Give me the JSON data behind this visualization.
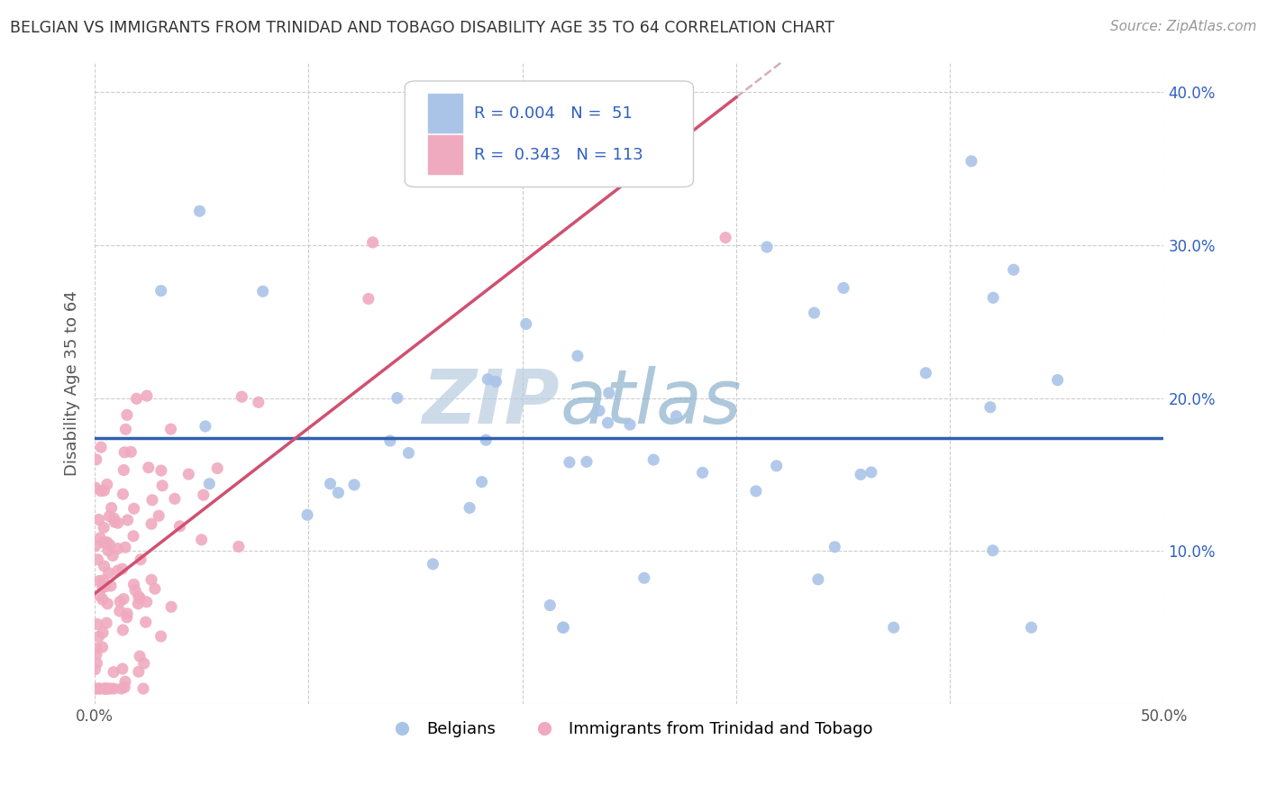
{
  "title": "BELGIAN VS IMMIGRANTS FROM TRINIDAD AND TOBAGO DISABILITY AGE 35 TO 64 CORRELATION CHART",
  "source": "Source: ZipAtlas.com",
  "ylabel": "Disability Age 35 to 64",
  "xlabel": "",
  "xlim": [
    0.0,
    0.5
  ],
  "ylim": [
    0.0,
    0.42
  ],
  "xticks": [
    0.0,
    0.1,
    0.2,
    0.3,
    0.4,
    0.5
  ],
  "yticks": [
    0.0,
    0.1,
    0.2,
    0.3,
    0.4
  ],
  "xticklabels": [
    "0.0%",
    "",
    "",
    "",
    "",
    "50.0%"
  ],
  "yticklabels_right": [
    "",
    "10.0%",
    "20.0%",
    "30.0%",
    "40.0%"
  ],
  "belgian_color": "#aac4e8",
  "tt_color": "#f0aac0",
  "belgian_line_color": "#3060b0",
  "tt_line_color": "#d05070",
  "tt_dash_color": "#d0a0b0",
  "belgian_r": 0.004,
  "tt_r": 0.343,
  "belgian_n": 51,
  "tt_n": 113,
  "watermark_color": "#c8d8e8",
  "background_color": "#ffffff",
  "grid_color": "#cccccc",
  "legend_text_color": "#3060c0"
}
